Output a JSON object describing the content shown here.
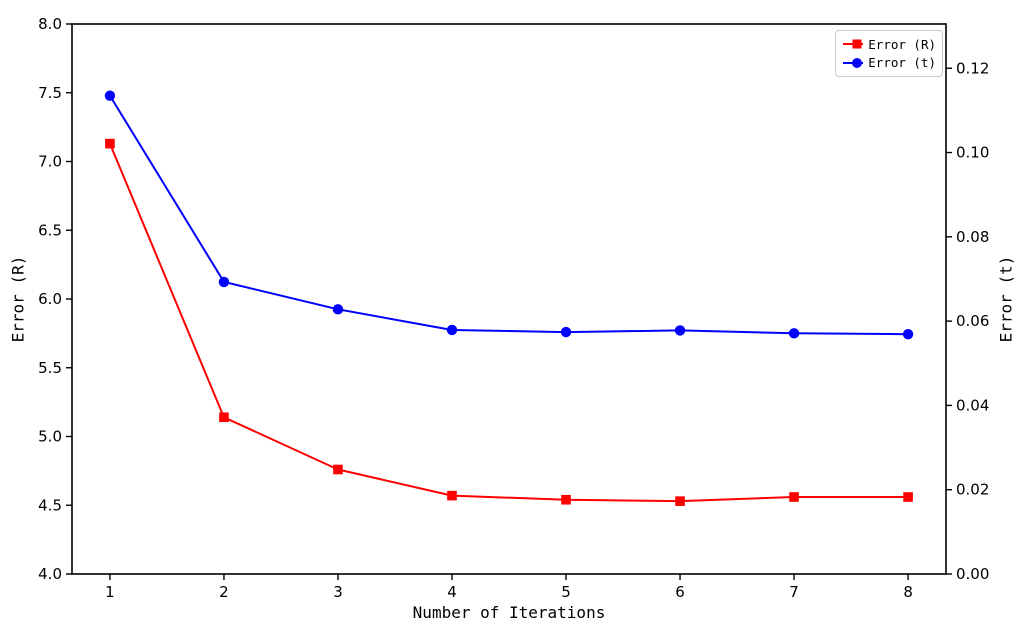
{
  "figure": {
    "background_color": "#ffffff",
    "axes_color": "#000000"
  },
  "chart_data": {
    "type": "line",
    "title": "",
    "xlabel": "Number of Iterations",
    "ylabel_left": "Error (R)",
    "ylabel_right": "Error (t)",
    "x": [
      1,
      2,
      3,
      4,
      5,
      6,
      7,
      8
    ],
    "series": [
      {
        "name": "Error (R)",
        "axis": "left",
        "color": "#ff0000",
        "marker": "square",
        "values": [
          7.13,
          5.14,
          4.76,
          4.57,
          4.54,
          4.53,
          4.56,
          4.56
        ]
      },
      {
        "name": "Error (t)",
        "axis": "right",
        "color": "#0000ff",
        "marker": "circle",
        "values": [
          0.1135,
          0.0693,
          0.0628,
          0.0579,
          0.0574,
          0.0578,
          0.0571,
          0.0569
        ]
      }
    ],
    "xlim": [
      0.6675,
      8.3325
    ],
    "ylim_left": [
      4.0,
      8.0
    ],
    "ylim_right": [
      0.0,
      0.1305
    ],
    "xticks": [
      "1",
      "2",
      "3",
      "4",
      "5",
      "6",
      "7",
      "8"
    ],
    "yticks_left": [
      "4.0",
      "4.5",
      "5.0",
      "5.5",
      "6.0",
      "6.5",
      "7.0",
      "7.5",
      "8.0"
    ],
    "yticks_right": [
      "0.00",
      "0.02",
      "0.04",
      "0.06",
      "0.08",
      "0.10",
      "0.12"
    ],
    "grid": false,
    "legend_position": "upper right"
  }
}
